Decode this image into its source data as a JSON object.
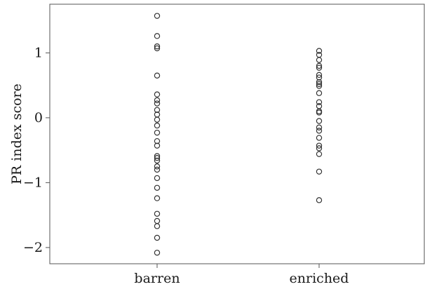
{
  "chart_data": {
    "type": "scatter",
    "title": "",
    "xlabel": "",
    "ylabel": "PR index score",
    "ylim": [
      -2.25,
      1.75
    ],
    "yticks": [
      -2,
      -1,
      0,
      1
    ],
    "ytick_labels": [
      "−2",
      "−1",
      "0",
      "1"
    ],
    "grid": false,
    "categories": [
      "barren",
      "enriched"
    ],
    "series": [
      {
        "category": "barren",
        "values": [
          1.57,
          1.26,
          1.1,
          1.07,
          0.65,
          0.36,
          0.27,
          0.22,
          0.12,
          0.05,
          -0.03,
          -0.12,
          -0.23,
          -0.36,
          -0.43,
          -0.59,
          -0.62,
          -0.66,
          -0.75,
          -0.8,
          -0.93,
          -1.08,
          -1.24,
          -1.48,
          -1.59,
          -1.67,
          -1.85,
          -2.08
        ]
      },
      {
        "category": "enriched",
        "values": [
          1.03,
          0.97,
          0.89,
          0.8,
          0.77,
          0.66,
          0.62,
          0.55,
          0.52,
          0.49,
          0.38,
          0.24,
          0.18,
          0.1,
          0.08,
          -0.05,
          -0.15,
          -0.2,
          -0.31,
          -0.43,
          -0.47,
          -0.56,
          -0.83,
          -1.27
        ]
      }
    ]
  }
}
